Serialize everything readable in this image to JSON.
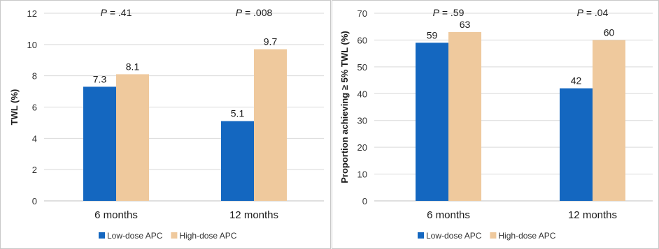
{
  "colors": {
    "low": "#1467c0",
    "high": "#efc99d",
    "grid": "#d9d9d9",
    "axis": "#bfbfbf"
  },
  "chart_data": [
    {
      "type": "bar",
      "categories": [
        "6 months",
        "12 months"
      ],
      "series": [
        {
          "name": "Low-dose APC",
          "values": [
            7.3,
            5.1
          ],
          "labels": [
            "7.3",
            "5.1"
          ]
        },
        {
          "name": "High-dose APC",
          "values": [
            8.1,
            9.7
          ],
          "labels": [
            "8.1",
            "9.7"
          ]
        }
      ],
      "annotations": [
        {
          "italic": "P",
          "text": " = .41"
        },
        {
          "italic": "P",
          "text": " = .008"
        }
      ],
      "title": "",
      "xlabel": "",
      "ylabel": "TWL (%)",
      "ylim": [
        0,
        12
      ],
      "yticks": [
        0,
        2,
        4,
        6,
        8,
        10,
        12
      ],
      "grid": true,
      "legend": "bottom"
    },
    {
      "type": "bar",
      "categories": [
        "6 months",
        "12 months"
      ],
      "series": [
        {
          "name": "Low-dose APC",
          "values": [
            59,
            42
          ],
          "labels": [
            "59",
            "42"
          ]
        },
        {
          "name": "High-dose APC",
          "values": [
            63,
            60
          ],
          "labels": [
            "63",
            "60"
          ]
        }
      ],
      "annotations": [
        {
          "italic": "P",
          "text": " = .59"
        },
        {
          "italic": "P",
          "text": " = .04"
        }
      ],
      "title": "",
      "xlabel": "",
      "ylabel": "Proportion achieving ≥ 5% TWL (%)",
      "ylim": [
        0,
        70
      ],
      "yticks": [
        0,
        10,
        20,
        30,
        40,
        50,
        60,
        70
      ],
      "grid": true,
      "legend": "bottom"
    }
  ]
}
